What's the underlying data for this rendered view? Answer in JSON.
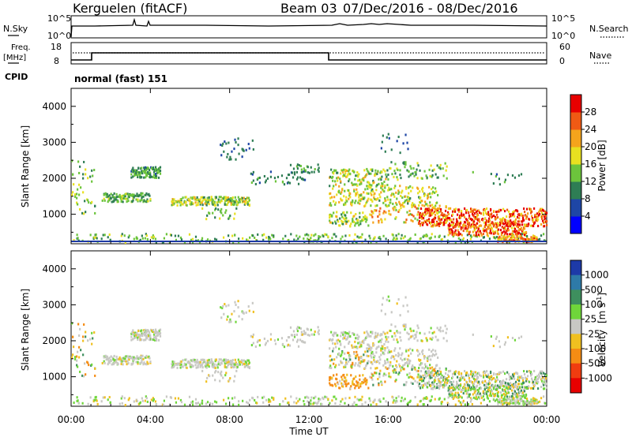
{
  "header": {
    "station": "Kerguelen (fitACF)",
    "beam": "Beam 03",
    "date_range": "07/Dec/2016 - 08/Dec/2016"
  },
  "noise_panel": {
    "left_label": "N.Sky",
    "right_label": "N.Search",
    "top_tick": "10^5",
    "bottom_tick": "10^0"
  },
  "freq_panel": {
    "left_label_line1": "Freq.",
    "left_label_line2": "[MHz]",
    "left_top_tick": "18",
    "left_bottom_tick": "8",
    "right_label": "Nave",
    "right_top_tick": "60",
    "right_bottom_tick": "0"
  },
  "cpid": {
    "label": "CPID",
    "mode": "normal (fast) 151"
  },
  "chart_data": [
    {
      "type": "heatmap",
      "ylabel": "Slant Range [km]",
      "ylim": [
        180,
        4500
      ],
      "yticks": [
        "1000",
        "2000",
        "3000",
        "4000"
      ],
      "colorbar_label": "Power [dB]",
      "colorbar_ticks": [
        "28",
        "24",
        "20",
        "16",
        "12",
        "8",
        "4"
      ],
      "colorbar_colors": [
        "#0000ff",
        "#1e46a6",
        "#2e7d54",
        "#6cc43c",
        "#e8e020",
        "#f5a41c",
        "#f05a14",
        "#e80000"
      ]
    },
    {
      "type": "heatmap",
      "ylabel": "Slant Range [km]",
      "ylim": [
        180,
        4500
      ],
      "yticks": [
        "1000",
        "2000",
        "3000",
        "4000"
      ],
      "xlabel": "Time UT",
      "xticks": [
        "00:00",
        "04:00",
        "08:00",
        "12:00",
        "16:00",
        "20:00",
        "00:00"
      ],
      "colorbar_label_main": "Velocity",
      "colorbar_label_unit": "[m s",
      "colorbar_label_sup": "-1",
      "colorbar_label_close": "]",
      "colorbar_ticks": [
        "1000",
        "500",
        "100",
        "25",
        "-25",
        "-100",
        "-500",
        "-1000"
      ],
      "colorbar_colors": [
        "#1d3aa8",
        "#2e7aa8",
        "#3e8f5e",
        "#6fd63a",
        "#c8c8c4",
        "#f0c020",
        "#f58c14",
        "#f03c10",
        "#e80000"
      ]
    }
  ]
}
